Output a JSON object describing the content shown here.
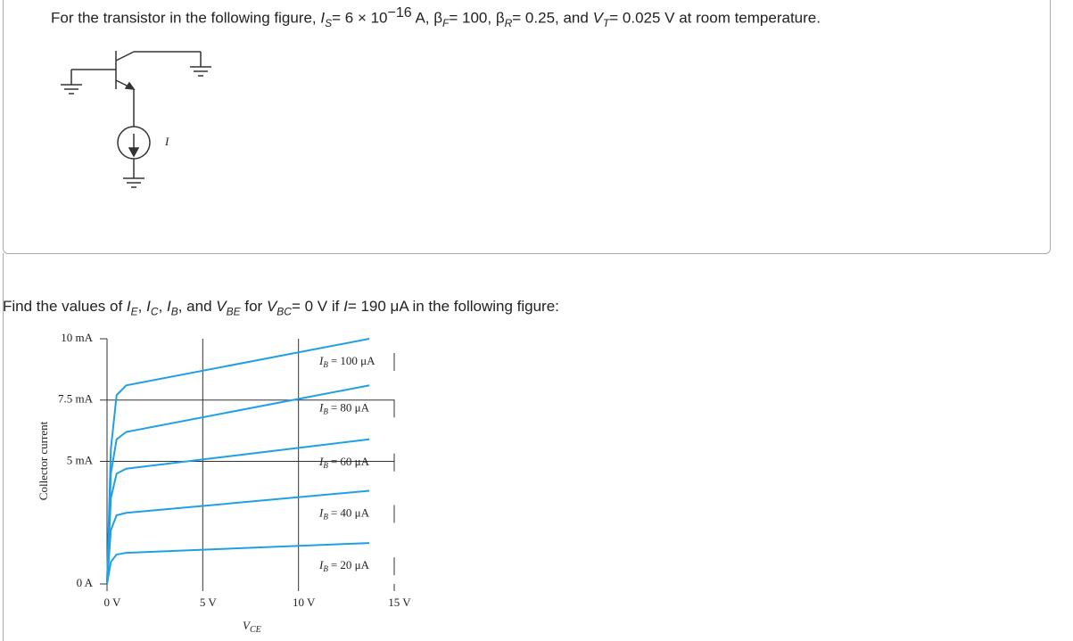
{
  "intro": [
    "For the transistor in the following figure, ",
    "I",
    "S",
    "= 6 × 10",
    "−16",
    " A, β",
    "F",
    "= 100, β",
    "R",
    "= 0.25, and ",
    "V",
    "T",
    "= 0.025 V at room temperature."
  ],
  "circuit": {
    "source_label": "I"
  },
  "question": [
    "Find the values of ",
    "I",
    "E",
    ", ",
    "I",
    "C",
    ", ",
    "I",
    "B",
    ", and ",
    "V",
    "BE",
    " for ",
    "V",
    "BC",
    "= 0 V if ",
    "I",
    "= 190 μA in the following figure:"
  ],
  "chart_data": {
    "type": "line",
    "x_label": {
      "symbol": "V",
      "sub": "CE"
    },
    "y_label": "Collector current",
    "curve_label": {
      "symbol": "I",
      "sub": "B"
    },
    "x": [
      0,
      0.2,
      0.5,
      1,
      13.7
    ],
    "series": [
      {
        "name": "= 100 μA",
        "color": "#1fa0e6",
        "values": [
          0,
          5.5,
          7.7,
          8.1,
          10
        ]
      },
      {
        "name": "= 80 μA",
        "color": "#1fa0e6",
        "values": [
          0,
          4.5,
          5.9,
          6.2,
          8.1
        ]
      },
      {
        "name": "= 60 μA",
        "color": "#1fa0e6",
        "values": [
          0,
          3.5,
          4.5,
          4.7,
          5.9
        ]
      },
      {
        "name": "= 40 μA",
        "color": "#1fa0e6",
        "values": [
          0,
          2.2,
          2.8,
          2.9,
          3.8
        ]
      },
      {
        "name": "= 20 μA",
        "color": "#1fa0e6",
        "values": [
          0,
          0.9,
          1.2,
          1.27,
          1.67
        ]
      }
    ],
    "xlim": [
      0,
      15
    ],
    "ylim": [
      0,
      10
    ],
    "xticks": [
      {
        "value": 0,
        "label": "0 V"
      },
      {
        "value": 5,
        "label": "5 V"
      },
      {
        "value": 10,
        "label": "10 V"
      },
      {
        "value": 15,
        "label": "15 V"
      }
    ],
    "yticks": [
      {
        "value": 0,
        "label": "0 A"
      },
      {
        "value": 5,
        "label": "5 mA"
      },
      {
        "value": 7.5,
        "label": "7.5 mA"
      },
      {
        "value": 10,
        "label": "10 mA"
      }
    ],
    "grid": true
  }
}
